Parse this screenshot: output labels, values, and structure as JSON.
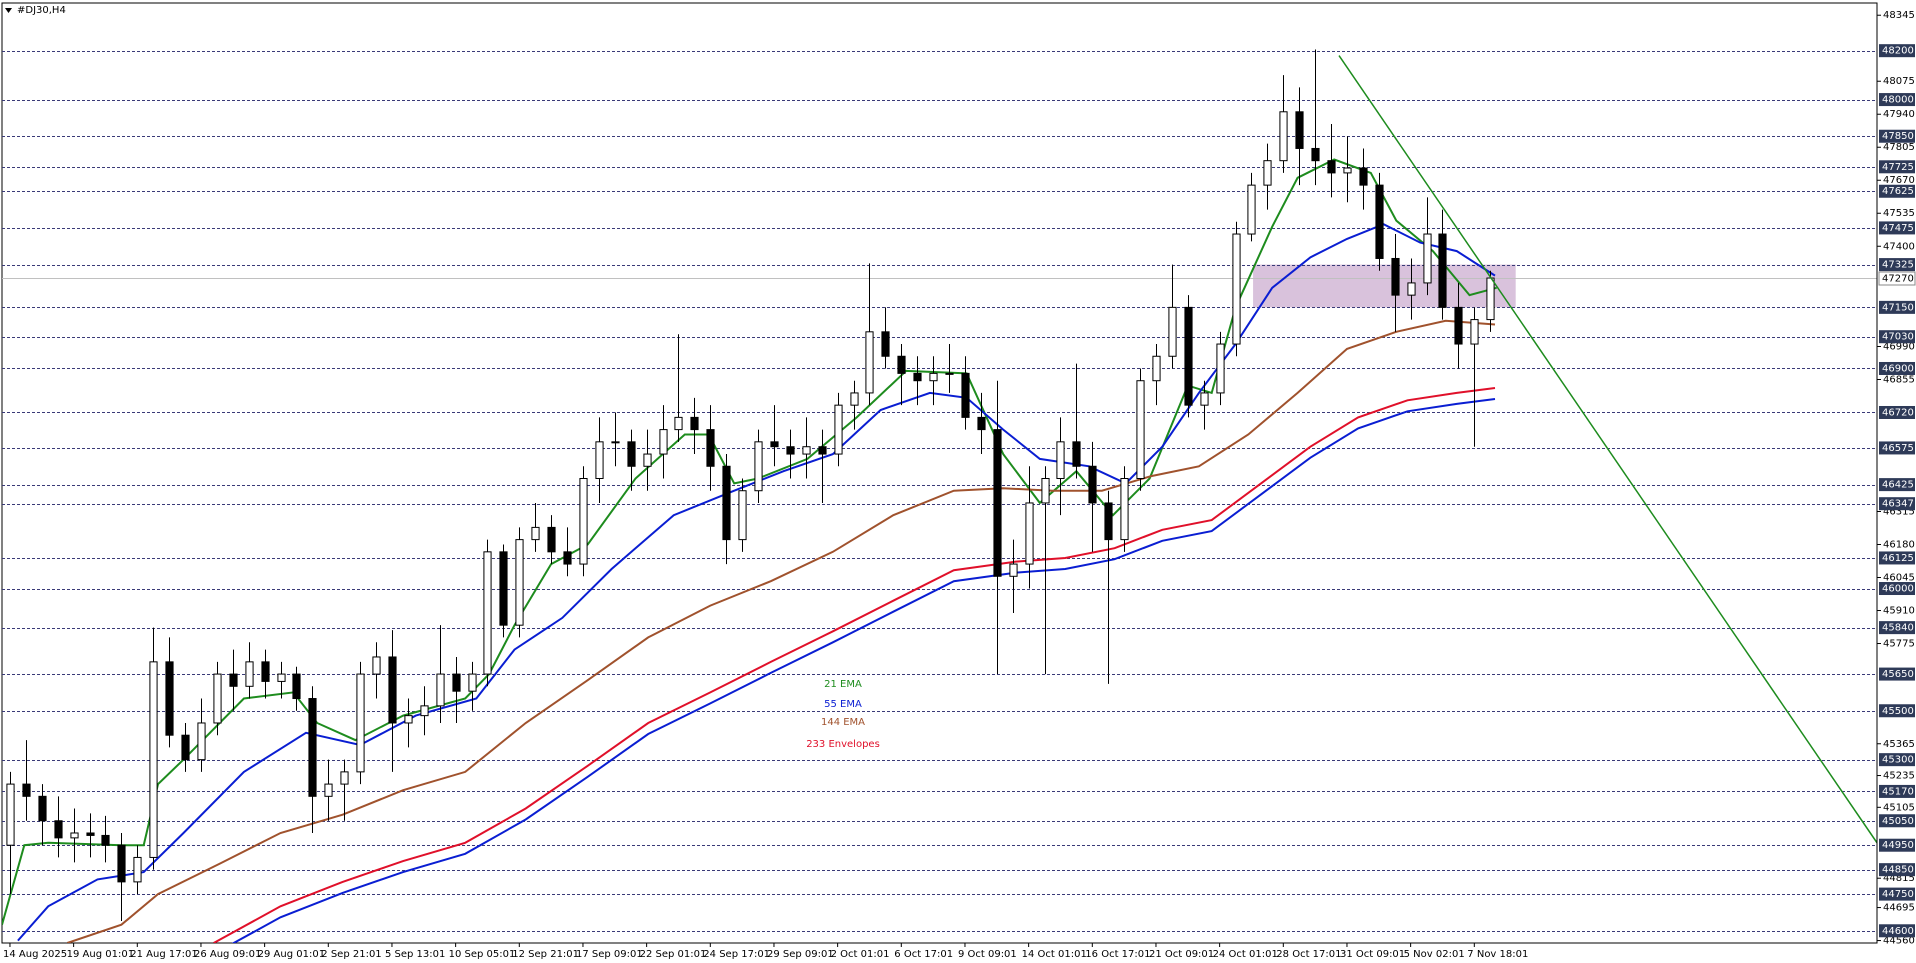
{
  "chart_data": {
    "type": "candlestick",
    "title": "#DJ30,H4",
    "ohlc": {
      "open": [
        44950,
        45200,
        45150,
        45050,
        44980,
        45000,
        44990,
        44950,
        44800,
        44900,
        45700,
        45400,
        45300,
        45450,
        45650,
        45600,
        45700,
        45620,
        45650,
        45550,
        45150,
        45200,
        45250,
        45650,
        45720,
        45450,
        45480,
        45520,
        45650,
        45580,
        45650,
        46150,
        45850,
        46200,
        46250,
        46150,
        46100,
        46450,
        46600,
        46600,
        46500,
        46550,
        46650,
        46700,
        46650,
        46500,
        46200,
        46400,
        46600,
        46580,
        46550,
        46580,
        46550,
        46750,
        46800,
        47050,
        46950,
        46880,
        46850,
        46880,
        46880,
        46700,
        46650,
        46050,
        46100,
        46350,
        46450,
        46600,
        46500,
        46350,
        46200,
        46450,
        46850,
        46950,
        47150,
        46750,
        46800,
        47000,
        47450,
        47650,
        47750,
        47950,
        47800,
        47750,
        47700,
        47720,
        47650,
        47350,
        47200,
        47250,
        47450,
        47150,
        47000,
        47100
      ],
      "high": [
        45250,
        45380,
        45200,
        45150,
        45100,
        45080,
        45070,
        45000,
        44950,
        45840,
        45800,
        45450,
        45550,
        45700,
        45750,
        45780,
        45750,
        45700,
        45680,
        45600,
        45300,
        45300,
        45700,
        45780,
        45830,
        45550,
        45600,
        45850,
        45720,
        45700,
        46200,
        46180,
        46250,
        46350,
        46300,
        46250,
        46500,
        46700,
        46720,
        46650,
        46650,
        46750,
        47040,
        46780,
        46750,
        46550,
        46450,
        46650,
        46750,
        46650,
        46700,
        46650,
        46800,
        46850,
        47330,
        47150,
        47000,
        46950,
        46950,
        47000,
        46950,
        46800,
        46850,
        46200,
        46500,
        46500,
        46700,
        46920,
        46600,
        46400,
        46500,
        46900,
        47000,
        47325,
        47200,
        46850,
        47050,
        47500,
        47700,
        47820,
        48100,
        48050,
        48205,
        47900,
        47850,
        47800,
        47700,
        47450,
        47350,
        47600,
        47550,
        47250,
        47150,
        47300
      ],
      "low": [
        44750,
        45050,
        44950,
        44900,
        44880,
        44900,
        44880,
        44640,
        44750,
        44850,
        45350,
        45250,
        45250,
        45400,
        45500,
        45550,
        45550,
        45550,
        45500,
        45000,
        45050,
        45050,
        45200,
        45550,
        45250,
        45350,
        45400,
        45450,
        45450,
        45500,
        45600,
        45800,
        45800,
        46150,
        46100,
        46050,
        46050,
        46350,
        46500,
        46400,
        46400,
        46450,
        46600,
        46550,
        46400,
        46100,
        46150,
        46350,
        46500,
        46450,
        46450,
        46350,
        46500,
        46650,
        46750,
        46900,
        46750,
        46750,
        46750,
        46800,
        46650,
        46550,
        45650,
        45900,
        46000,
        45650,
        46300,
        46450,
        46150,
        45610,
        46150,
        46400,
        46750,
        46900,
        46700,
        46650,
        46750,
        46950,
        47420,
        47550,
        47700,
        47650,
        47650,
        47600,
        47580,
        47550,
        47300,
        47050,
        47100,
        47200,
        47100,
        46900,
        46580,
        47050
      ],
      "close": [
        45200,
        45150,
        45050,
        44980,
        45000,
        44990,
        44950,
        44800,
        44900,
        45700,
        45400,
        45300,
        45450,
        45650,
        45600,
        45700,
        45620,
        45650,
        45550,
        45150,
        45200,
        45250,
        45650,
        45720,
        45450,
        45480,
        45520,
        45650,
        45580,
        45650,
        46150,
        45850,
        46200,
        46250,
        46150,
        46100,
        46450,
        46600,
        46600,
        46500,
        46550,
        46650,
        46700,
        46650,
        46500,
        46200,
        46400,
        46600,
        46580,
        46550,
        46580,
        46550,
        46750,
        46800,
        47050,
        46950,
        46880,
        46850,
        46880,
        46880,
        46700,
        46650,
        46050,
        46100,
        46350,
        46450,
        46600,
        46500,
        46350,
        46200,
        46450,
        46850,
        46950,
        47150,
        46750,
        46800,
        47000,
        47450,
        47650,
        47750,
        47950,
        47800,
        47750,
        47700,
        47720,
        47650,
        47350,
        47200,
        47250,
        47450,
        47150,
        47000,
        47100,
        47270
      ]
    },
    "bull_color": "#ffffff",
    "bear_color": "#000000",
    "series": [
      {
        "name": "21 EMA",
        "color": "#1e8c1e",
        "x": [
          -0.5,
          0.9,
          2.4,
          7.0,
          8.4,
          9.3,
          10.9,
          14.7,
          17.8,
          19.3,
          21.7,
          24.7,
          28.6,
          30.1,
          31.7,
          34.0,
          36.3,
          39.3,
          42.4,
          43.9,
          45.5,
          47.0,
          50.1,
          53.2,
          56.3,
          60.1,
          62.4,
          64.7,
          67.0,
          69.3,
          71.6,
          74.0,
          75.5,
          77.0,
          79.3,
          80.9,
          83.2,
          85.5,
          87.1,
          89.4,
          91.7,
          93.4
        ],
        "values": [
          44625,
          44950,
          44960,
          44950,
          44950,
          45200,
          45300,
          45550,
          45575,
          45450,
          45380,
          45480,
          45550,
          45650,
          45850,
          46100,
          46180,
          46450,
          46630,
          46630,
          46430,
          46450,
          46530,
          46700,
          46890,
          46880,
          46550,
          46350,
          46480,
          46300,
          46450,
          46830,
          46800,
          47150,
          47480,
          47680,
          47755,
          47700,
          47505,
          47380,
          47200,
          47230
        ]
      },
      {
        "name": "55 EMA",
        "color": "#0a1ed2",
        "x": [
          0.5,
          2.4,
          5.5,
          8.4,
          10.9,
          14.7,
          18.6,
          22.0,
          25.5,
          29.3,
          31.7,
          34.7,
          37.8,
          41.7,
          45.5,
          48.6,
          51.7,
          54.7,
          57.8,
          60.1,
          62.4,
          64.7,
          67.8,
          70.1,
          72.4,
          74.7,
          77.0,
          79.3,
          81.7,
          84.0,
          86.3,
          88.6,
          90.9,
          93.3
        ],
        "values": [
          44560,
          44700,
          44810,
          44840,
          45000,
          45250,
          45410,
          45360,
          45480,
          45550,
          45750,
          45880,
          46080,
          46300,
          46400,
          46480,
          46550,
          46730,
          46800,
          46780,
          46650,
          46530,
          46500,
          46430,
          46580,
          46800,
          47000,
          47230,
          47355,
          47430,
          47490,
          47415,
          47380,
          47280
        ]
      },
      {
        "name": "144 EMA",
        "color": "#a0522d",
        "x": [
          3.6,
          7.0,
          9.3,
          13.2,
          17.0,
          20.9,
          24.7,
          28.6,
          32.4,
          36.3,
          40.1,
          44.0,
          47.8,
          51.7,
          55.5,
          59.3,
          62.4,
          65.5,
          68.6,
          71.7,
          74.7,
          77.8,
          80.9,
          84.0,
          87.1,
          90.2,
          93.3
        ],
        "values": [
          44550,
          44625,
          44750,
          44875,
          45000,
          45075,
          45175,
          45250,
          45450,
          45625,
          45800,
          45930,
          46030,
          46150,
          46300,
          46400,
          46410,
          46400,
          46400,
          46460,
          46500,
          46630,
          46800,
          46980,
          47050,
          47095,
          47080
        ]
      },
      {
        "name": "233 Envelopes",
        "color": "#e0102a",
        "lower_color": "#0a1ed2",
        "x": [
          12.8,
          17.0,
          20.9,
          24.7,
          28.6,
          32.4,
          36.3,
          40.1,
          44.0,
          47.8,
          51.7,
          55.5,
          59.3,
          63.2,
          66.3,
          69.4,
          72.4,
          75.5,
          78.6,
          81.7,
          84.7,
          87.8,
          90.9,
          93.3
        ],
        "values": [
          44550,
          44700,
          44800,
          44885,
          44960,
          45100,
          45275,
          45450,
          45575,
          45700,
          45825,
          45950,
          46075,
          46110,
          46125,
          46165,
          46240,
          46280,
          46430,
          46580,
          46700,
          46770,
          46800,
          46820
        ],
        "lower_values": [
          44505,
          44655,
          44755,
          44840,
          44915,
          45055,
          45230,
          45405,
          45530,
          45655,
          45780,
          45905,
          46030,
          46065,
          46080,
          46120,
          46195,
          46235,
          46385,
          46535,
          46655,
          46725,
          46755,
          46775
        ]
      }
    ],
    "trendline": {
      "x": [
        83.5,
        117.3
      ],
      "y": [
        48180,
        44960
      ],
      "color": "#1e8c1e"
    },
    "zone": {
      "x": [
        78.1,
        94.6
      ],
      "y": [
        47150,
        47325
      ],
      "color": "#d9c2dc"
    },
    "xlim": [
      -0.5,
      117.3
    ],
    "ylim": [
      44550,
      48395
    ],
    "yticks": [
      48345,
      48075,
      47940,
      47805,
      47670,
      47535,
      47400,
      46990,
      46855,
      46315,
      46180,
      46045,
      45910,
      45775,
      45365,
      45235,
      45105,
      44815,
      44695,
      44560
    ],
    "levels": [
      48200,
      48000,
      47850,
      47725,
      47625,
      47475,
      47325,
      47150,
      47030,
      46900,
      46720,
      46575,
      46425,
      46347,
      46125,
      46000,
      45840,
      45650,
      45500,
      45300,
      45170,
      45050,
      44950,
      44850,
      44750,
      44600
    ],
    "current_price": 47270,
    "xticks": [
      {
        "value": 0,
        "label": "14 Aug 2025"
      },
      {
        "value": 4,
        "label": "19 Aug 01:01"
      },
      {
        "value": 8,
        "label": "21 Aug 17:01"
      },
      {
        "value": 12,
        "label": "26 Aug 09:01"
      },
      {
        "value": 16,
        "label": "29 Aug 01:01"
      },
      {
        "value": 20,
        "label": "2 Sep 21:01"
      },
      {
        "value": 24,
        "label": "5 Sep 13:01"
      },
      {
        "value": 28,
        "label": "10 Sep 05:01"
      },
      {
        "value": 32,
        "label": "12 Sep 21:01"
      },
      {
        "value": 36,
        "label": "17 Sep 09:01"
      },
      {
        "value": 40,
        "label": "22 Sep 01:01"
      },
      {
        "value": 44,
        "label": "24 Sep 17:01"
      },
      {
        "value": 48,
        "label": "29 Sep 09:01"
      },
      {
        "value": 52,
        "label": "2 Oct 01:01"
      },
      {
        "value": 56,
        "label": "6 Oct 17:01"
      },
      {
        "value": 60,
        "label": "9 Oct 09:01"
      },
      {
        "value": 64,
        "label": "14 Oct 01:01"
      },
      {
        "value": 68,
        "label": "16 Oct 17:01"
      },
      {
        "value": 72,
        "label": "21 Oct 09:01"
      },
      {
        "value": 76,
        "label": "24 Oct 01:01"
      },
      {
        "value": 80,
        "label": "28 Oct 17:01"
      },
      {
        "value": 84,
        "label": "31 Oct 09:01"
      },
      {
        "value": 88,
        "label": "5 Nov 02:01"
      },
      {
        "value": 92,
        "label": "7 Nov 18:01"
      }
    ]
  }
}
